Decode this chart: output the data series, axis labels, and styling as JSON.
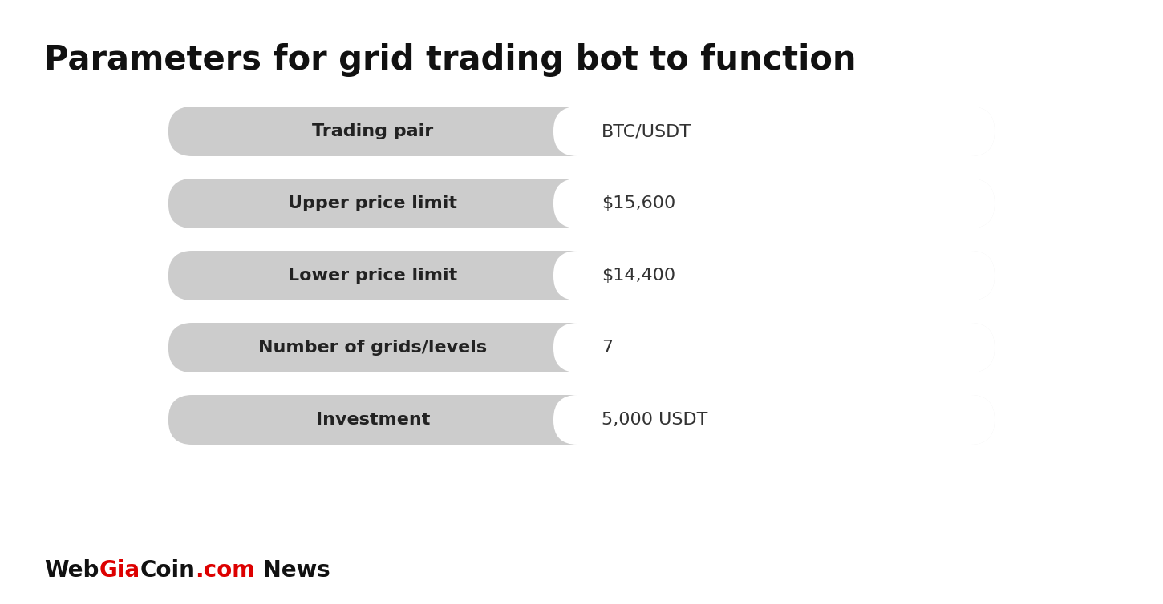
{
  "title": "Parameters for grid trading bot to function",
  "title_fontsize": 30,
  "title_fontweight": "bold",
  "background_color": "#ffffff",
  "rows": [
    {
      "label": "Trading pair",
      "value": "BTC/USDT"
    },
    {
      "label": "Upper price limit",
      "value": "$15,600"
    },
    {
      "label": "Lower price limit",
      "value": "$14,400"
    },
    {
      "label": "Number of grids/levels",
      "value": "7"
    },
    {
      "label": "Investment",
      "value": "5,000 USDT"
    }
  ],
  "label_bg_color": "#cccccc",
  "value_bg_color": "#ffffff",
  "outer_bg_color": "#eeeeee",
  "label_text_color": "#222222",
  "value_text_color": "#333333",
  "label_fontsize": 16,
  "value_fontsize": 16,
  "label_fontweight": "bold",
  "value_fontweight": "normal",
  "watermark_color_red": "#dd0000",
  "watermark_color_dark": "#111111",
  "watermark_fontsize": 20,
  "watermark_fontweight": "bold"
}
